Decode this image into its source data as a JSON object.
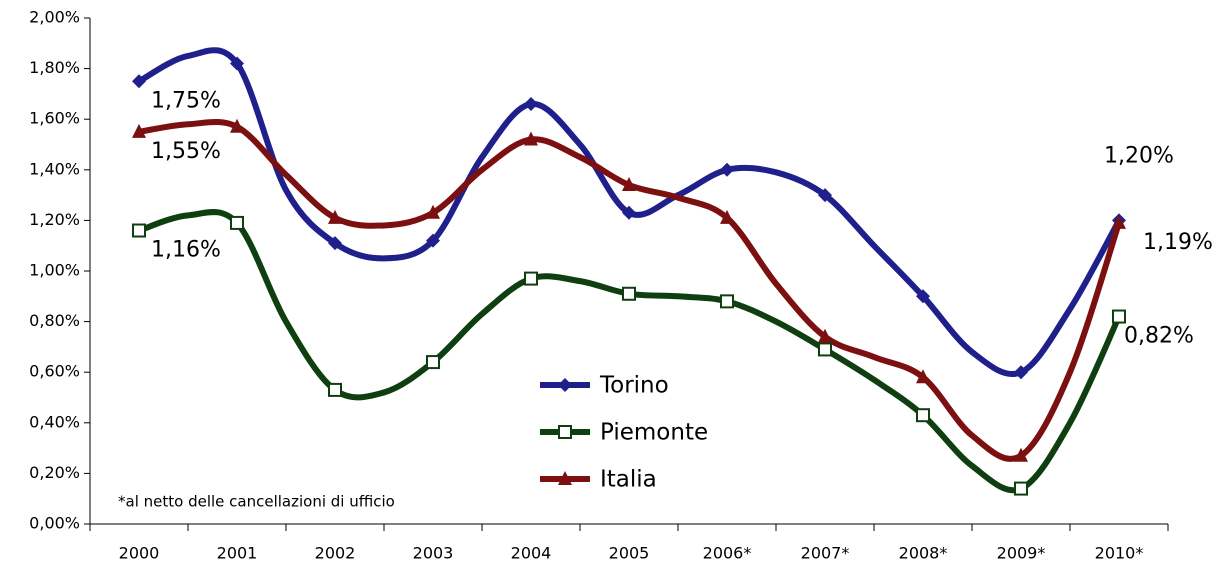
{
  "chart_data": {
    "type": "line",
    "categories": [
      "2000",
      null,
      "2001",
      null,
      "2002",
      null,
      "2003",
      null,
      "2004",
      null,
      "2005",
      null,
      "2006*",
      null,
      "2007*",
      null,
      "2008*",
      null,
      "2009*",
      null,
      "2010*"
    ],
    "series": [
      {
        "name": "Torino",
        "color": "#20208c",
        "marker": "diamond",
        "values": [
          1.75,
          1.85,
          1.82,
          1.32,
          1.11,
          1.05,
          1.12,
          1.45,
          1.66,
          1.5,
          1.23,
          1.3,
          1.4,
          1.39,
          1.3,
          1.1,
          0.9,
          0.68,
          0.6,
          0.85,
          1.2
        ],
        "value_labels": [
          "1,75%",
          null,
          null,
          null,
          null,
          null,
          null,
          null,
          null,
          null,
          null,
          null,
          null,
          null,
          null,
          null,
          null,
          null,
          null,
          null,
          "1,20%"
        ]
      },
      {
        "name": "Piemonte",
        "color": "#0f3f10",
        "marker": "square",
        "values": [
          1.16,
          1.22,
          1.19,
          0.8,
          0.53,
          0.52,
          0.64,
          0.83,
          0.97,
          0.96,
          0.91,
          0.9,
          0.88,
          0.8,
          0.69,
          0.57,
          0.43,
          0.23,
          0.14,
          0.4,
          0.82
        ],
        "value_labels": [
          "1,16%",
          null,
          null,
          null,
          null,
          null,
          null,
          null,
          null,
          null,
          null,
          null,
          null,
          null,
          null,
          null,
          null,
          null,
          null,
          null,
          "0,82%"
        ]
      },
      {
        "name": "Italia",
        "color": "#7c1010",
        "marker": "triangle",
        "values": [
          1.55,
          1.58,
          1.57,
          1.38,
          1.21,
          1.18,
          1.23,
          1.4,
          1.52,
          1.45,
          1.34,
          1.29,
          1.21,
          0.95,
          0.74,
          0.66,
          0.58,
          0.35,
          0.27,
          0.6,
          1.19
        ],
        "value_labels": [
          "1,55%",
          null,
          null,
          null,
          null,
          null,
          null,
          null,
          null,
          null,
          null,
          null,
          null,
          null,
          null,
          null,
          null,
          null,
          null,
          null,
          "1,19%"
        ]
      }
    ],
    "ylim": [
      0,
      2
    ],
    "yticks": [
      {
        "value": 0,
        "label": "0,00%"
      },
      {
        "value": 0.2,
        "label": "0,20%"
      },
      {
        "value": 0.4,
        "label": "0,40%"
      },
      {
        "value": 0.6,
        "label": "0,60%"
      },
      {
        "value": 0.8,
        "label": "0,80%"
      },
      {
        "value": 1,
        "label": "1,00%"
      },
      {
        "value": 1.2,
        "label": "1,20%"
      },
      {
        "value": 1.4,
        "label": "1,40%"
      },
      {
        "value": 1.6,
        "label": "1,60%"
      },
      {
        "value": 1.8,
        "label": "1,80%"
      },
      {
        "value": 2,
        "label": "2,00%"
      }
    ],
    "grid": false,
    "legend": "bottom-center",
    "annotation": "*al netto delle cancellazioni di ufficio"
  }
}
